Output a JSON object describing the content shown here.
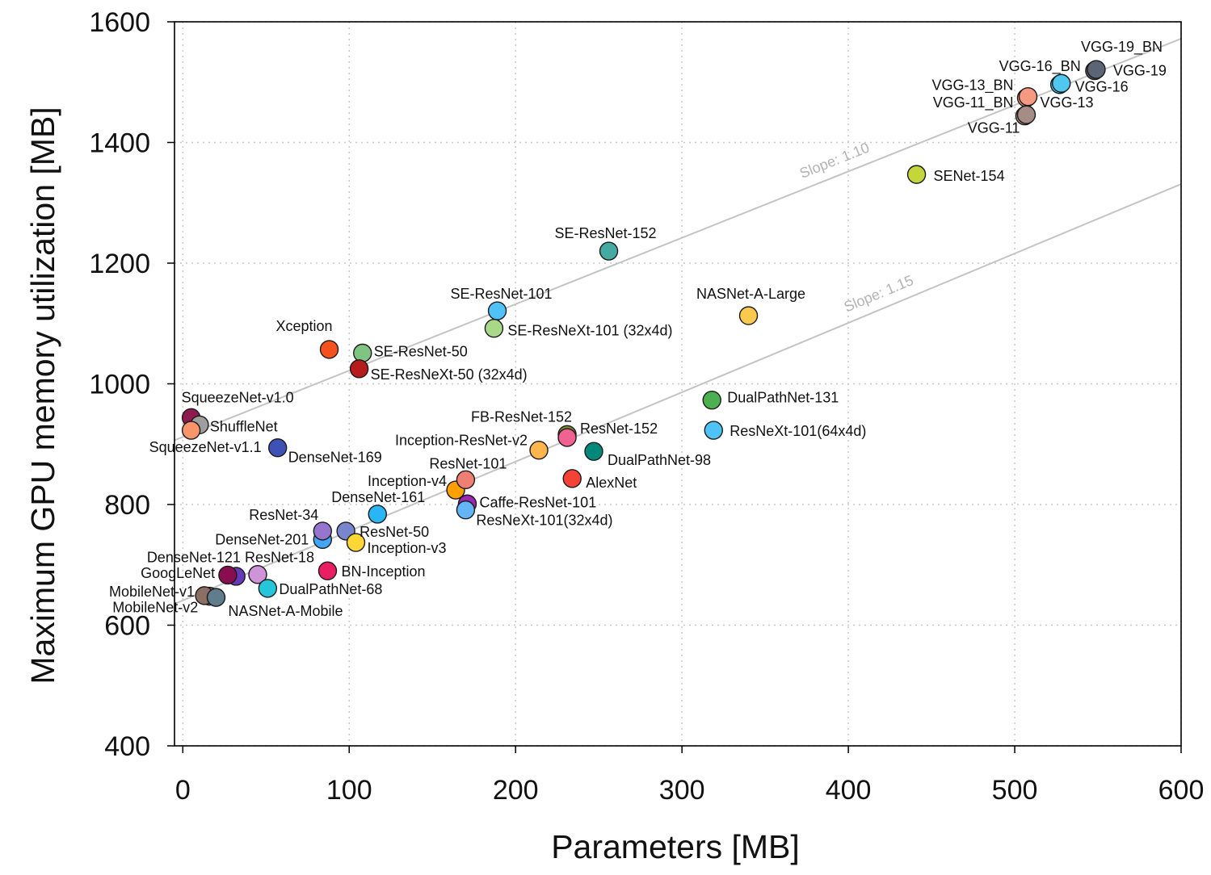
{
  "chart_data": {
    "type": "scatter",
    "title": "",
    "xlabel": "Parameters [MB]",
    "ylabel": "Maximum GPU memory utilization [MB]",
    "xlim": [
      -5,
      600
    ],
    "ylim": [
      400,
      1600
    ],
    "x_ticks": [
      0,
      100,
      200,
      300,
      400,
      500,
      600
    ],
    "y_ticks": [
      400,
      600,
      800,
      1000,
      1200,
      1400,
      1600
    ],
    "grid": true,
    "trend_lines": [
      {
        "label": "Slope: 1.10",
        "slope": 1.1,
        "intercept": 912
      },
      {
        "label": "Slope: 1.15",
        "slope": 1.15,
        "intercept": 641
      }
    ],
    "points": [
      {
        "label": "VGG-19",
        "x": 548,
        "y": 1519,
        "color": "#5b6575"
      },
      {
        "label": "VGG-19_BN",
        "x": 549,
        "y": 1521,
        "color": "#5b6575"
      },
      {
        "label": "VGG-16",
        "x": 527,
        "y": 1496,
        "color": "#4fc8ef"
      },
      {
        "label": "VGG-16_BN",
        "x": 528,
        "y": 1498,
        "color": "#4fc8ef"
      },
      {
        "label": "VGG-13",
        "x": 507,
        "y": 1474,
        "color": "#f59a80"
      },
      {
        "label": "VGG-13_BN",
        "x": 508,
        "y": 1476,
        "color": "#f59a80"
      },
      {
        "label": "VGG-11",
        "x": 506,
        "y": 1444,
        "color": "#a58d86"
      },
      {
        "label": "VGG-11_BN",
        "x": 507,
        "y": 1446,
        "color": "#a58d86"
      },
      {
        "label": "SENet-154",
        "x": 441,
        "y": 1347,
        "color": "#c5d63a"
      },
      {
        "label": "SE-ResNet-152",
        "x": 256,
        "y": 1220,
        "color": "#45aaa2"
      },
      {
        "label": "NASNet-A-Large",
        "x": 340,
        "y": 1113,
        "color": "#fbc94e"
      },
      {
        "label": "SE-ResNet-101",
        "x": 189,
        "y": 1121,
        "color": "#4fc3f7"
      },
      {
        "label": "SE-ResNeXt-101 (32x4d)",
        "x": 187,
        "y": 1092,
        "color": "#a9d886"
      },
      {
        "label": "Xception",
        "x": 88,
        "y": 1057,
        "color": "#f4511e"
      },
      {
        "label": "SE-ResNet-50",
        "x": 108,
        "y": 1051,
        "color": "#7fc483"
      },
      {
        "label": "SE-ResNeXt-50 (32x4d)",
        "x": 106,
        "y": 1025,
        "color": "#b71c1c"
      },
      {
        "label": "SqueezeNet-v1.0",
        "x": 5,
        "y": 944,
        "color": "#8e1b4f"
      },
      {
        "label": "ShuffleNet",
        "x": 10,
        "y": 932,
        "color": "#9e9e9e"
      },
      {
        "label": "SqueezeNet-v1.1",
        "x": 5,
        "y": 923,
        "color": "#f9946b"
      },
      {
        "label": "DenseNet-169",
        "x": 57,
        "y": 894,
        "color": "#3f51b5"
      },
      {
        "label": "DualPathNet-131",
        "x": 318,
        "y": 973,
        "color": "#4caf50"
      },
      {
        "label": "ResNeXt-101(64x4d)",
        "x": 319,
        "y": 923,
        "color": "#4fc3f7"
      },
      {
        "label": "FB-ResNet-152",
        "x": 231,
        "y": 916,
        "color": "#7d8c2e"
      },
      {
        "label": "ResNet-152",
        "x": 231,
        "y": 911,
        "color": "#f06292"
      },
      {
        "label": "Inception-ResNet-v2",
        "x": 214,
        "y": 890,
        "color": "#ffb74d"
      },
      {
        "label": "DualPathNet-98",
        "x": 247,
        "y": 888,
        "color": "#00897b"
      },
      {
        "label": "Inception-v4",
        "x": 164,
        "y": 824,
        "color": "#ffa000"
      },
      {
        "label": "ResNet-101",
        "x": 170,
        "y": 841,
        "color": "#ef7f73"
      },
      {
        "label": "AlexNet",
        "x": 234,
        "y": 843,
        "color": "#f44336"
      },
      {
        "label": "Caffe-ResNet-101",
        "x": 171,
        "y": 801,
        "color": "#9c27b0"
      },
      {
        "label": "ResNeXt-101(32x4d)",
        "x": 170,
        "y": 791,
        "color": "#64b5f6"
      },
      {
        "label": "DenseNet-161",
        "x": 117,
        "y": 784,
        "color": "#29b6f6"
      },
      {
        "label": "DenseNet-201",
        "x": 84,
        "y": 742,
        "color": "#42a5f5"
      },
      {
        "label": "ResNet-34",
        "x": 84,
        "y": 756,
        "color": "#9575cd"
      },
      {
        "label": "ResNet-50",
        "x": 98,
        "y": 756,
        "color": "#7986cb"
      },
      {
        "label": "Inception-v3",
        "x": 104,
        "y": 737,
        "color": "#fdd835"
      },
      {
        "label": "BN-Inception",
        "x": 87,
        "y": 690,
        "color": "#e91e63"
      },
      {
        "label": "ResNet-18",
        "x": 45,
        "y": 684,
        "color": "#ce93d8"
      },
      {
        "label": "GoogLeNet",
        "x": 32,
        "y": 681,
        "color": "#673ab7"
      },
      {
        "label": "DenseNet-121",
        "x": 27,
        "y": 683,
        "color": "#880e4f"
      },
      {
        "label": "DualPathNet-68",
        "x": 51,
        "y": 661,
        "color": "#26c6da"
      },
      {
        "label": "MobileNet-v2",
        "x": 16,
        "y": 648,
        "color": "#a1887f"
      },
      {
        "label": "MobileNet-v1",
        "x": 13,
        "y": 649,
        "color": "#8d6e63"
      },
      {
        "label": "NASNet-A-Mobile",
        "x": 20,
        "y": 646,
        "color": "#607d8b"
      }
    ]
  },
  "colors": {
    "marker_edge": "#1a1a1a",
    "grid": "#c8c8c8",
    "trend_line": "#c4c4c4",
    "trend_label": "#b3b3b3",
    "axis": "#000000",
    "text": "#111111"
  }
}
